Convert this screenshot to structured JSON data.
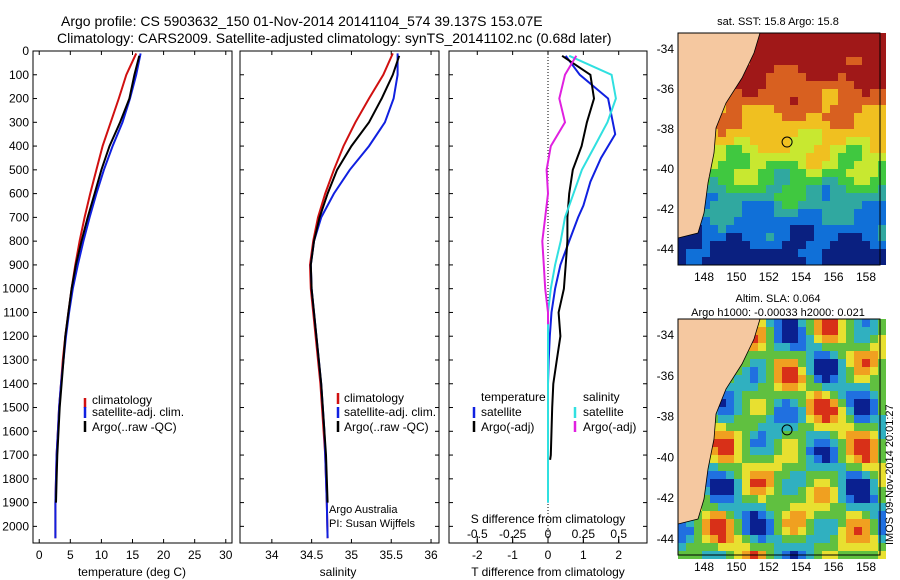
{
  "header": {
    "line1": "Argo profile: CS 5903632_150 01-Nov-2014 20141104_574 39.137S 153.07E",
    "line2": "Climatology: CARS2009. Satellite-adjusted climatology: synTS_20141102.nc (0.68d later)"
  },
  "colors": {
    "clim": "#d01010",
    "sat": "#1020e0",
    "argo": "#000000",
    "sal_sat": "#30e0e0",
    "sal_argo": "#e020e0"
  },
  "chart_data": [
    {
      "type": "line",
      "id": "temperature",
      "xlabel": "temperature (deg C)",
      "ylabel": "",
      "xlim": [
        -1,
        31
      ],
      "ylim": [
        2070,
        0
      ],
      "xticks": [
        0,
        5,
        10,
        15,
        20,
        25,
        30
      ],
      "yticks": [
        0,
        100,
        200,
        300,
        400,
        500,
        600,
        700,
        800,
        900,
        1000,
        1100,
        1200,
        1300,
        1400,
        1500,
        1600,
        1700,
        1800,
        1900,
        2000
      ],
      "legend": [
        "climatology",
        "satellite-adj. clim.",
        "Argo(..raw -QC)"
      ],
      "series": [
        {
          "name": "climatology",
          "color": "clim",
          "x": [
            15.6,
            14.0,
            12.8,
            11.5,
            10.2,
            9.2,
            8.2,
            7.3,
            6.5,
            5.8,
            5.2,
            4.7,
            4.2,
            3.8,
            3.5,
            3.2,
            3.0,
            2.8,
            2.7,
            2.6,
            2.6
          ],
          "y": [
            10,
            100,
            200,
            300,
            400,
            500,
            600,
            700,
            800,
            900,
            1000,
            1100,
            1200,
            1300,
            1400,
            1500,
            1600,
            1700,
            1800,
            1900,
            2050
          ]
        },
        {
          "name": "satellite-adj. clim.",
          "color": "sat",
          "x": [
            16.3,
            15.6,
            14.6,
            13.4,
            11.8,
            10.4,
            9.2,
            8.1,
            7.1,
            6.2,
            5.4,
            4.8,
            4.3,
            3.9,
            3.5,
            3.2,
            3.0,
            2.8,
            2.7,
            2.6,
            2.6
          ],
          "y": [
            10,
            100,
            200,
            300,
            400,
            500,
            600,
            700,
            800,
            900,
            1000,
            1100,
            1200,
            1300,
            1400,
            1500,
            1600,
            1700,
            1800,
            1900,
            2050
          ]
        },
        {
          "name": "Argo(..raw -QC)",
          "color": "argo",
          "x": [
            16.1,
            15.3,
            14.5,
            13.0,
            11.3,
            10.0,
            8.9,
            7.8,
            6.8,
            5.9,
            5.2,
            4.7,
            4.2,
            3.9,
            3.6,
            3.3,
            3.1,
            2.9,
            2.8,
            2.7
          ],
          "y": [
            20,
            100,
            200,
            300,
            400,
            500,
            600,
            700,
            800,
            900,
            1000,
            1100,
            1200,
            1300,
            1400,
            1500,
            1600,
            1700,
            1800,
            1900
          ]
        }
      ]
    },
    {
      "type": "line",
      "id": "salinity",
      "xlabel": "salinity",
      "xlim": [
        33.6,
        36.1
      ],
      "ylim": [
        2070,
        0
      ],
      "xticks": [
        34,
        34.5,
        35,
        35.5,
        36
      ],
      "xticklabels": [
        "34",
        "34.5",
        "35",
        "35.5",
        "36"
      ],
      "legend": [
        "climatology",
        "satellite-adj. clim.",
        "Argo(..raw -QC)"
      ],
      "annotation": [
        "Argo Australia",
        "PI: Susan Wijffels"
      ],
      "series": [
        {
          "name": "climatology",
          "color": "clim",
          "x": [
            35.52,
            35.4,
            35.22,
            35.05,
            34.9,
            34.78,
            34.67,
            34.58,
            34.52,
            34.48,
            34.49,
            34.52,
            34.55,
            34.58,
            34.61,
            34.63,
            34.65,
            34.67,
            34.68,
            34.69,
            34.7
          ],
          "y": [
            10,
            100,
            200,
            300,
            400,
            500,
            600,
            700,
            800,
            900,
            1000,
            1100,
            1200,
            1300,
            1400,
            1500,
            1600,
            1700,
            1800,
            1900,
            2050
          ]
        },
        {
          "name": "satellite-adj. clim.",
          "color": "sat",
          "x": [
            35.58,
            35.58,
            35.53,
            35.42,
            35.22,
            34.98,
            34.78,
            34.62,
            34.53,
            34.49,
            34.5,
            34.53,
            34.56,
            34.59,
            34.62,
            34.64,
            34.66,
            34.67,
            34.68,
            34.69,
            34.7
          ],
          "y": [
            10,
            100,
            200,
            300,
            400,
            500,
            600,
            700,
            800,
            900,
            1000,
            1100,
            1200,
            1300,
            1400,
            1500,
            1600,
            1700,
            1800,
            1900,
            2050
          ]
        },
        {
          "name": "Argo(..raw -QC)",
          "color": "argo",
          "x": [
            35.6,
            35.52,
            35.38,
            35.22,
            35.0,
            34.82,
            34.7,
            34.6,
            34.53,
            34.49,
            34.5,
            34.53,
            34.56,
            34.59,
            34.62,
            34.64,
            34.66,
            34.68,
            34.69,
            34.7
          ],
          "y": [
            20,
            100,
            200,
            300,
            400,
            500,
            600,
            700,
            800,
            900,
            1000,
            1100,
            1200,
            1300,
            1400,
            1500,
            1600,
            1700,
            1800,
            1900
          ]
        }
      ]
    },
    {
      "type": "line",
      "id": "difference",
      "xlabel": "T difference from climatology",
      "xlabel_top": "S difference from climatology",
      "xlim": [
        -2.8,
        2.8
      ],
      "ylim": [
        2070,
        0
      ],
      "xticks": [
        -2,
        -1,
        0,
        1,
        2
      ],
      "top_ticks": [
        -0.5,
        -0.25,
        0,
        0.25,
        0.5
      ],
      "top_ticklabels": [
        "-0.5",
        "-0.25",
        "0",
        "0.25",
        "0.5"
      ],
      "legend_left": {
        "title": "temperature",
        "items": [
          "satellite",
          "Argo(-adj)"
        ]
      },
      "legend_right": {
        "title": "salinity",
        "items": [
          "satellite",
          "Argo(-adj)"
        ]
      },
      "series": [
        {
          "name": "T satellite",
          "color": "sat",
          "x": [
            0.5,
            0.9,
            1.7,
            1.9,
            1.5,
            1.2,
            1.0,
            0.85,
            0.6,
            0.35,
            0.2,
            0.1,
            0.05,
            0.02,
            0.0,
            0.0,
            0.0,
            0.0,
            0.0,
            0.0
          ],
          "y": [
            20,
            100,
            200,
            350,
            450,
            550,
            650,
            700,
            800,
            900,
            1000,
            1100,
            1200,
            1300,
            1400,
            1500,
            1600,
            1700,
            1800,
            1900
          ]
        },
        {
          "name": "T Argo(-adj)",
          "color": "argo",
          "x": [
            0.4,
            1.2,
            1.3,
            1.1,
            0.95,
            0.7,
            0.6,
            0.55,
            0.55,
            0.5,
            0.45,
            0.3,
            0.35,
            0.25,
            0.15,
            0.12,
            0.1,
            0.08,
            0.06
          ],
          "y": [
            20,
            100,
            200,
            300,
            400,
            500,
            600,
            700,
            800,
            900,
            1000,
            1100,
            1200,
            1300,
            1400,
            1500,
            1600,
            1700,
            1720
          ]
        },
        {
          "name": "S satellite",
          "color": "sal_sat",
          "x": [
            0.15,
            0.45,
            0.48,
            0.42,
            0.33,
            0.24,
            0.18,
            0.12,
            0.09,
            0.05,
            0.02,
            0.0,
            0.0,
            0.0,
            0.0,
            0.0,
            0.0,
            0.0,
            0.0
          ],
          "y": [
            20,
            100,
            200,
            300,
            400,
            500,
            600,
            700,
            800,
            900,
            1000,
            1100,
            1300,
            1400,
            1500,
            1600,
            1700,
            1800,
            1900
          ]
        },
        {
          "name": "S Argo(-adj)",
          "color": "sal_argo",
          "x": [
            0.2,
            0.12,
            0.08,
            0.12,
            0.02,
            -0.01,
            0.0,
            -0.02,
            -0.04,
            -0.03,
            -0.02,
            0.0,
            0.0
          ],
          "y": [
            20,
            100,
            200,
            300,
            400,
            500,
            600,
            700,
            800,
            900,
            1000,
            1100,
            1150
          ]
        }
      ]
    }
  ],
  "maps": [
    {
      "title": "sat. SST: 15.8 Argo: 15.8",
      "subtitle": "",
      "yticks": [
        "-34",
        "-36",
        "-38",
        "-40",
        "-42",
        "-44"
      ],
      "xticks": [
        "148",
        "150",
        "152",
        "154",
        "156",
        "158"
      ],
      "kind": "sst"
    },
    {
      "title": "Altim. SLA: 0.064",
      "subtitle": "Argo h1000: -0.00033 h2000: 0.021",
      "yticks": [
        "-34",
        "-36",
        "-38",
        "-40",
        "-42",
        "-44"
      ],
      "xticks": [
        "148",
        "150",
        "152",
        "154",
        "156",
        "158"
      ],
      "kind": "sla"
    }
  ],
  "vertical_caption": "IMOS 09-Nov-2014 20:01:27"
}
